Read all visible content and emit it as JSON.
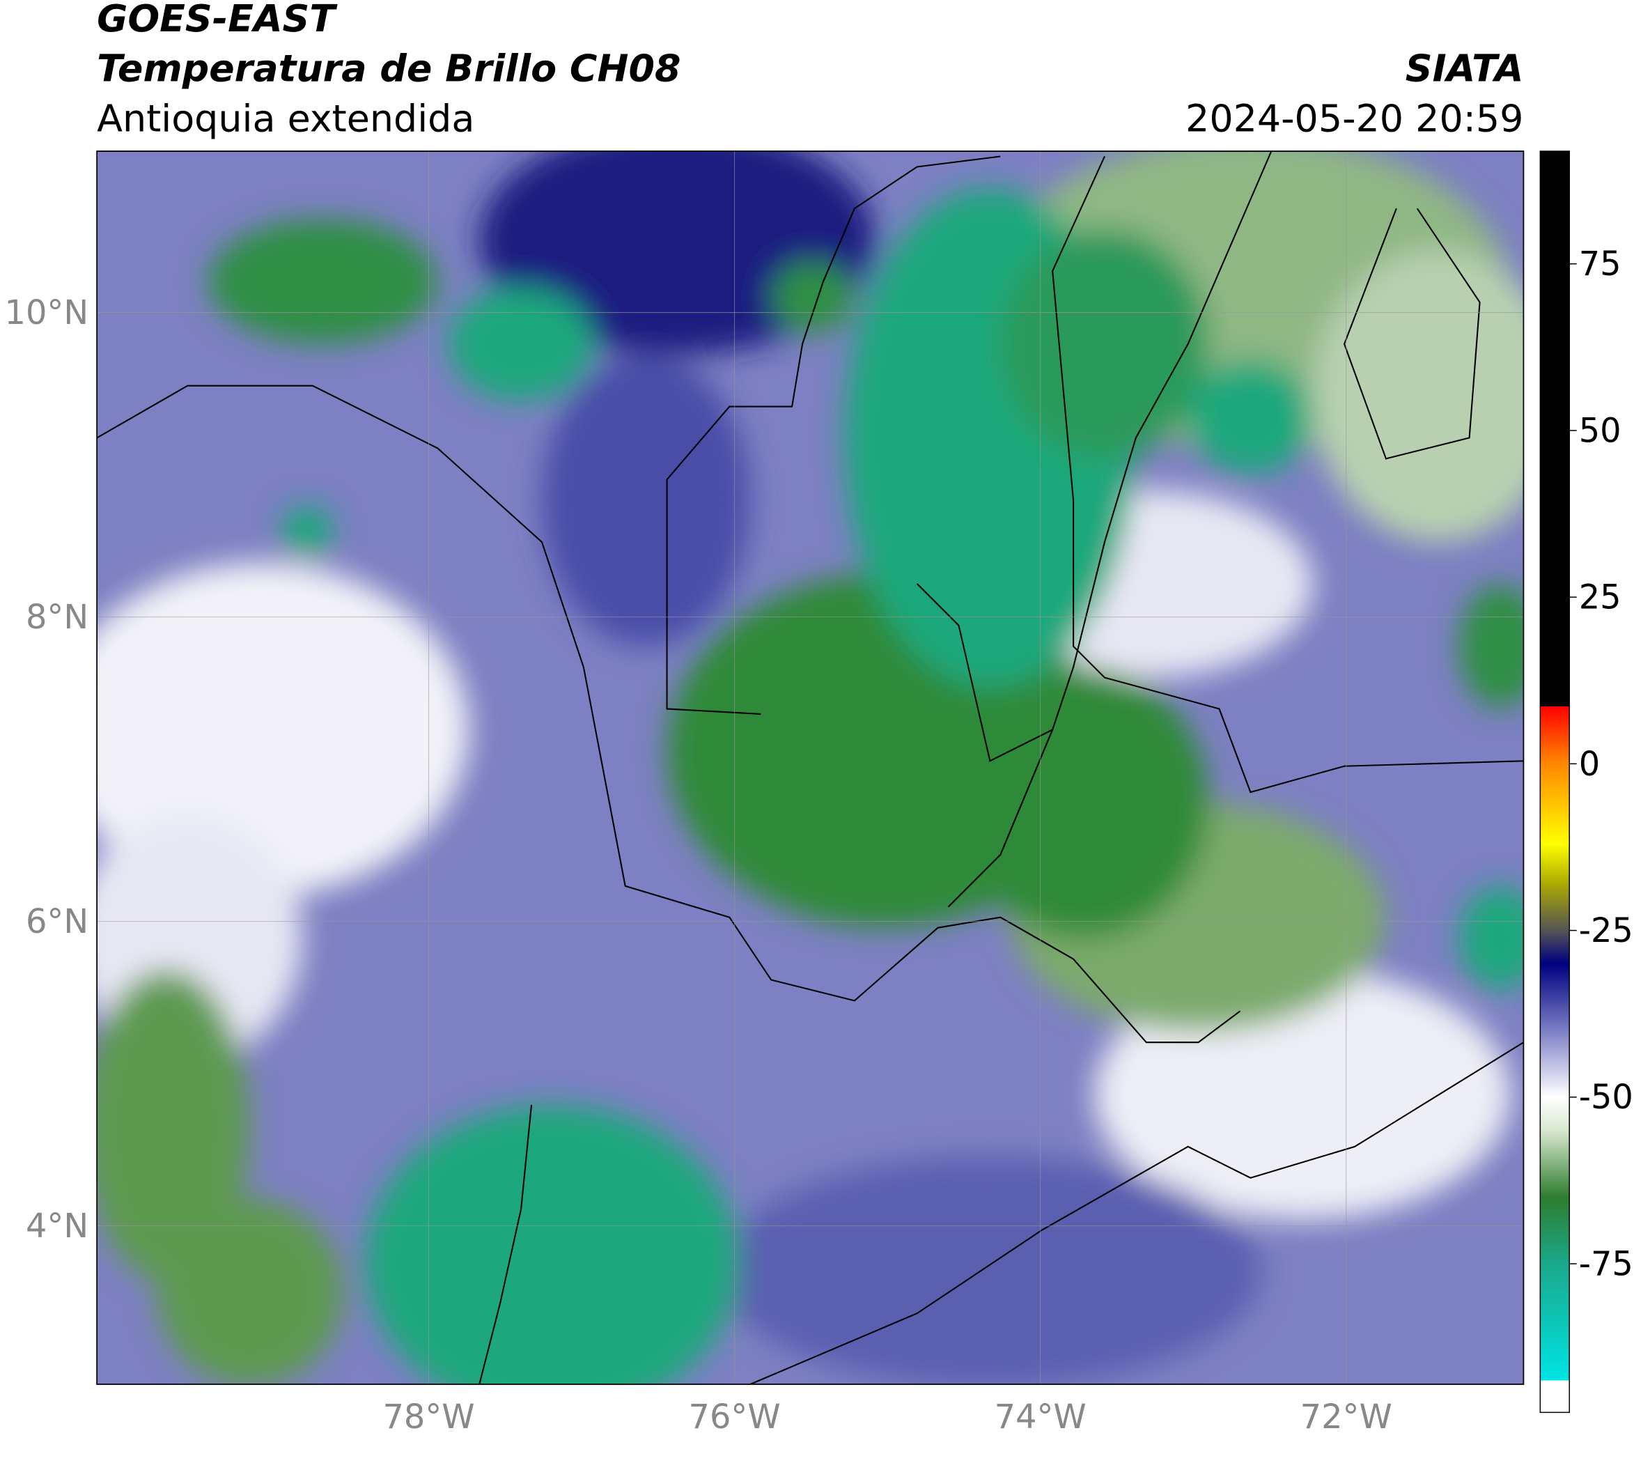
{
  "header": {
    "title": "GOES-EAST",
    "subtitle": "Temperatura de Brillo CH08",
    "region": "Antioquia extendida",
    "source": "SIATA",
    "timestamp": "2024-05-20 20:59"
  },
  "map": {
    "xlim": [
      -80.17,
      -70.84
    ],
    "ylim": [
      2.96,
      11.06
    ],
    "xticks": [
      {
        "value": -78,
        "label": "78°W"
      },
      {
        "value": -76,
        "label": "76°W"
      },
      {
        "value": -74,
        "label": "74°W"
      },
      {
        "value": -72,
        "label": "72°W"
      }
    ],
    "yticks": [
      {
        "value": 10,
        "label": "10°N"
      },
      {
        "value": 8,
        "label": "8°N"
      },
      {
        "value": 6,
        "label": "6°N"
      },
      {
        "value": 4,
        "label": "4°N"
      }
    ],
    "grid": true
  },
  "colorbar": {
    "lim": [
      -97.3,
      91.9
    ],
    "ticks": [
      75,
      50,
      25,
      0,
      -25,
      -50,
      -75
    ],
    "stops": [
      {
        "value": -97.3,
        "color": "#ffffff"
      },
      {
        "value": -92.5,
        "color": "#ffffff"
      },
      {
        "value": -92.5,
        "color": "#00e5e5"
      },
      {
        "value": -75,
        "color": "#1aa88a"
      },
      {
        "value": -65,
        "color": "#2e7d2e"
      },
      {
        "value": -55,
        "color": "#d8e8d0"
      },
      {
        "value": -50,
        "color": "#ffffff"
      },
      {
        "value": -40,
        "color": "#7b7fc4"
      },
      {
        "value": -30,
        "color": "#000080"
      },
      {
        "value": -25,
        "color": "#555555"
      },
      {
        "value": -18,
        "color": "#aaaa00"
      },
      {
        "value": -12,
        "color": "#ffff00"
      },
      {
        "value": 0,
        "color": "#ff8800"
      },
      {
        "value": 8.6,
        "color": "#ff0000"
      },
      {
        "value": 8.6,
        "color": "#000000"
      },
      {
        "value": 91.9,
        "color": "#000000"
      }
    ]
  }
}
